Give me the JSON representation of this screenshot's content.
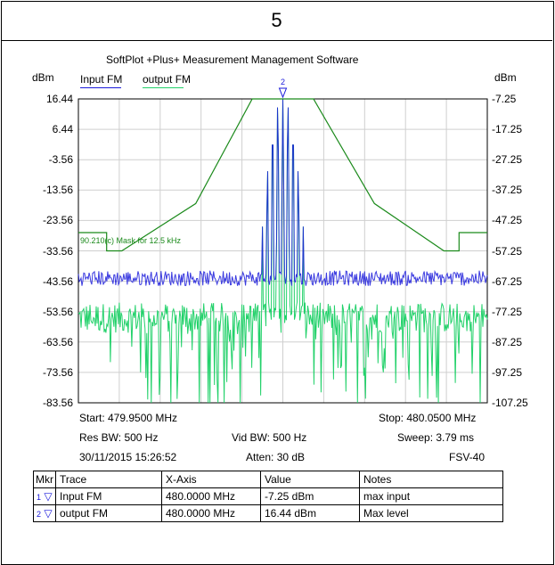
{
  "page": {
    "number": "5"
  },
  "chart_data": {
    "type": "line",
    "title": "SoftPlot +Plus+ Measurement Management Software",
    "left_axis": {
      "unit": "dBm",
      "ticks": [
        "16.44",
        "6.44",
        "-3.56",
        "-13.56",
        "-23.56",
        "-33.56",
        "-43.56",
        "-53.56",
        "-63.56",
        "-73.56",
        "-83.56"
      ],
      "range": [
        -83.56,
        16.44
      ]
    },
    "right_axis": {
      "unit": "dBm",
      "ticks": [
        "-7.25",
        "-17.25",
        "-27.25",
        "-37.25",
        "-47.25",
        "-57.25",
        "-67.25",
        "-77.25",
        "-87.25",
        "-97.25",
        "-107.25"
      ],
      "range": [
        -107.25,
        -7.25
      ]
    },
    "x_range_mhz": [
      479.95,
      480.05
    ],
    "grid": true,
    "legend_placement": "top-left",
    "colors": {
      "input": "#1a1adb",
      "output": "#22d16a",
      "mask": "#1b8a1b"
    },
    "series": [
      {
        "name": "Input FM",
        "axis": "right",
        "color": "#1a1adb",
        "peak_x": 480.0,
        "peak_y": -7.25,
        "noise_floor": -67.25
      },
      {
        "name": "output FM",
        "axis": "left",
        "color": "#22d16a",
        "peak_x": 480.0,
        "peak_y": 16.44,
        "noise_floor": -53.56
      }
    ],
    "mask": {
      "label": "90.210(c) Mask for 12.5 kHz",
      "axis": "left",
      "points_mhz_dbm": [
        [
          479.95,
          -27.56
        ],
        [
          479.9569,
          -27.56
        ],
        [
          479.9569,
          -33.56
        ],
        [
          479.9606,
          -33.56
        ],
        [
          479.9787,
          -18.0
        ],
        [
          479.9925,
          16.44
        ],
        [
          480.0075,
          16.44
        ],
        [
          480.0224,
          -18.0
        ],
        [
          480.0394,
          -33.56
        ],
        [
          480.0431,
          -33.56
        ],
        [
          480.0431,
          -27.56
        ],
        [
          480.05,
          -27.56
        ]
      ]
    },
    "marker_top": {
      "label": "2",
      "x": 480.0
    },
    "info": {
      "start": "Start: 479.9500 MHz",
      "stop": "Stop: 480.0500 MHz",
      "res_bw": "Res BW: 500 Hz",
      "vid_bw": "Vid BW: 500 Hz",
      "sweep": "Sweep: 3.79 ms",
      "date": "30/11/2015 15:26:52",
      "atten": "Atten: 30 dB",
      "instrument": "FSV-40"
    }
  },
  "marker_table": {
    "headers": [
      "Mkr",
      "Trace",
      "X-Axis",
      "Value",
      "Notes"
    ],
    "rows": [
      {
        "mkr": "1",
        "trace": "Input FM",
        "x": "480.0000 MHz",
        "value": "-7.25 dBm",
        "notes": "max input"
      },
      {
        "mkr": "2",
        "trace": "output FM",
        "x": "480.0000 MHz",
        "value": "16.44 dBm",
        "notes": "Max level"
      }
    ]
  }
}
